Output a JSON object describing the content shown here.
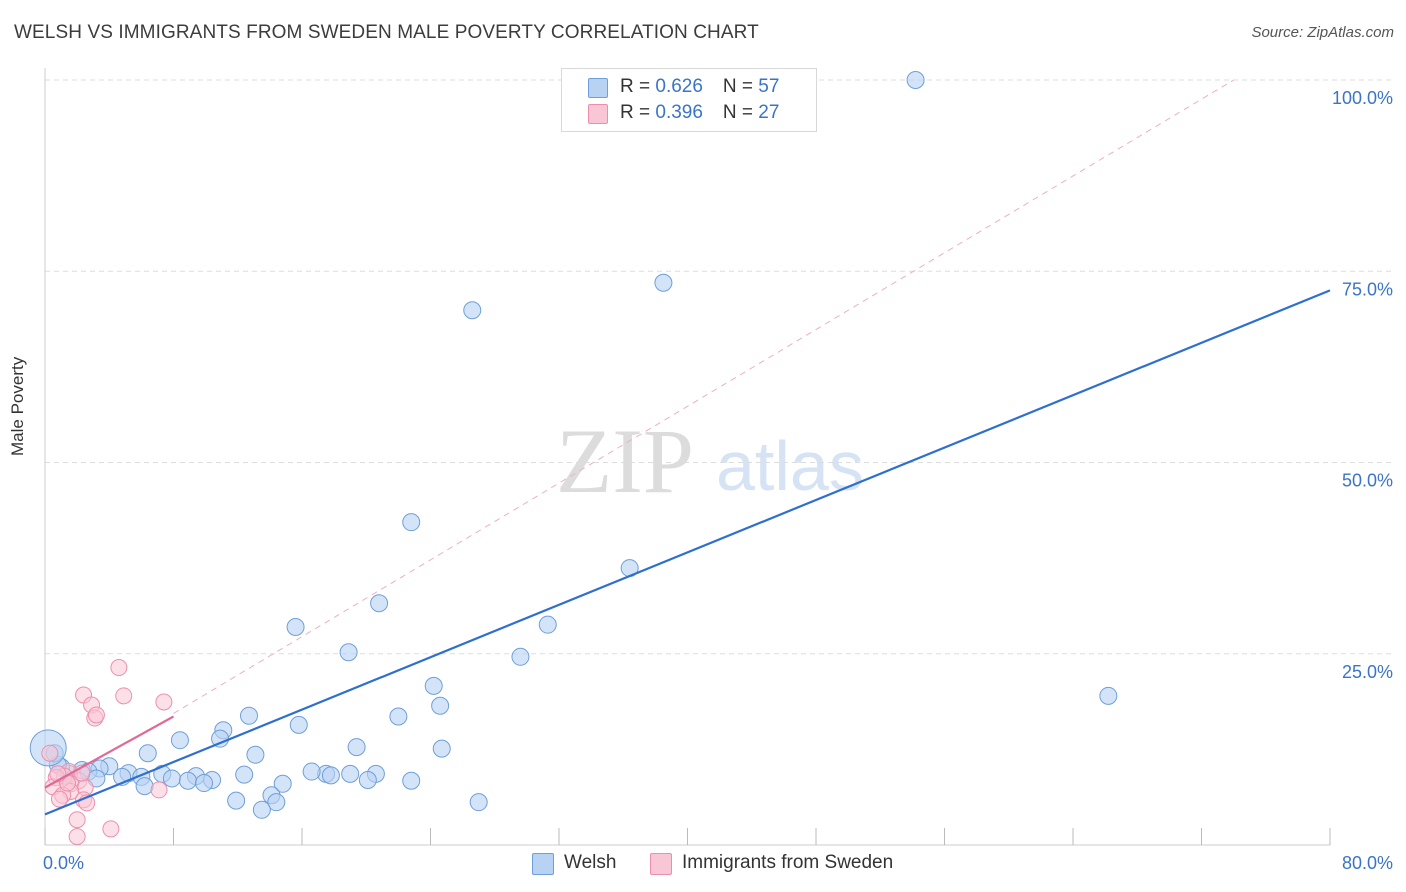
{
  "title": "WELSH VS IMMIGRANTS FROM SWEDEN MALE POVERTY CORRELATION CHART",
  "source": "Source: ZipAtlas.com",
  "watermark": {
    "zip": "ZIP",
    "atlas": "atlas"
  },
  "legend_top": {
    "welsh": {
      "r_label": "R = ",
      "r_value": "0.626",
      "n_label": "N = ",
      "n_value": "57"
    },
    "sweden": {
      "r_label": "R = ",
      "r_value": "0.396",
      "n_label": "N = ",
      "n_value": "27"
    }
  },
  "colors": {
    "welsh_fill": "#b8d2f4",
    "welsh_stroke": "#6f9fd8",
    "welsh_line": "#2f6fcd",
    "sweden_fill": "#f9c6d6",
    "sweden_stroke": "#ec8fae",
    "sweden_line": "#e06a95",
    "grid": "#dddddd",
    "tick": "#3a74c8"
  },
  "chart_data": {
    "type": "scatter",
    "title": "WELSH VS IMMIGRANTS FROM SWEDEN MALE POVERTY CORRELATION CHART",
    "xlabel": "",
    "ylabel": "Male Poverty",
    "xlim": [
      0,
      80
    ],
    "ylim": [
      0,
      100
    ],
    "x_tick_labels": [
      "0.0%",
      "80.0%"
    ],
    "y_tick_labels": [
      "25.0%",
      "50.0%",
      "75.0%",
      "100.0%"
    ],
    "y_ticks": [
      25,
      50,
      75,
      100
    ],
    "grid": true,
    "legend": [
      "Welsh",
      "Immigrants from Sweden"
    ],
    "series": [
      {
        "name": "Welsh",
        "r": 0.626,
        "n": 57,
        "trend": {
          "x": [
            0,
            80
          ],
          "y": [
            4.0,
            72.5
          ]
        },
        "points": [
          [
            54.2,
            100.0
          ],
          [
            38.5,
            73.5
          ],
          [
            26.6,
            69.9
          ],
          [
            22.8,
            42.2
          ],
          [
            36.4,
            36.2
          ],
          [
            20.8,
            31.6
          ],
          [
            31.3,
            28.8
          ],
          [
            15.6,
            28.5
          ],
          [
            29.6,
            24.6
          ],
          [
            18.9,
            25.2
          ],
          [
            66.2,
            19.5
          ],
          [
            24.2,
            20.8
          ],
          [
            24.6,
            18.2
          ],
          [
            12.7,
            16.9
          ],
          [
            22.0,
            16.8
          ],
          [
            15.8,
            15.7
          ],
          [
            11.1,
            15.0
          ],
          [
            8.4,
            13.7
          ],
          [
            10.9,
            13.9
          ],
          [
            24.7,
            12.6
          ],
          [
            19.4,
            12.8
          ],
          [
            13.1,
            11.8
          ],
          [
            6.4,
            12.0
          ],
          [
            4.0,
            10.3
          ],
          [
            3.4,
            10.0
          ],
          [
            2.3,
            9.8
          ],
          [
            5.2,
            9.4
          ],
          [
            7.3,
            9.3
          ],
          [
            6.0,
            8.9
          ],
          [
            12.4,
            9.2
          ],
          [
            17.5,
            9.3
          ],
          [
            20.6,
            9.3
          ],
          [
            16.6,
            9.6
          ],
          [
            19.0,
            9.3
          ],
          [
            17.8,
            9.1
          ],
          [
            9.4,
            9.0
          ],
          [
            10.4,
            8.5
          ],
          [
            7.9,
            8.7
          ],
          [
            8.9,
            8.4
          ],
          [
            14.8,
            8.0
          ],
          [
            9.9,
            8.1
          ],
          [
            6.2,
            7.7
          ],
          [
            14.1,
            6.5
          ],
          [
            11.9,
            5.8
          ],
          [
            14.4,
            5.6
          ],
          [
            27.0,
            5.6
          ],
          [
            13.5,
            4.6
          ],
          [
            22.8,
            8.4
          ],
          [
            20.1,
            8.5
          ],
          [
            1.5,
            9.3
          ],
          [
            2.7,
            9.6
          ],
          [
            1.0,
            10.2
          ],
          [
            0.8,
            10.5
          ],
          [
            4.8,
            8.9
          ],
          [
            0.6,
            12.0
          ],
          [
            3.2,
            8.7
          ],
          [
            0.2,
            12.7
          ]
        ]
      },
      {
        "name": "Immigrants from Sweden",
        "r": 0.396,
        "n": 27,
        "trend": {
          "x": [
            0,
            8
          ],
          "y": [
            7.5,
            16.8
          ]
        },
        "points": [
          [
            4.6,
            23.2
          ],
          [
            2.4,
            19.6
          ],
          [
            4.9,
            19.5
          ],
          [
            7.4,
            18.7
          ],
          [
            2.9,
            18.3
          ],
          [
            3.1,
            16.6
          ],
          [
            3.2,
            17.0
          ],
          [
            0.3,
            12.0
          ],
          [
            1.5,
            9.6
          ],
          [
            1.2,
            9.0
          ],
          [
            0.7,
            8.8
          ],
          [
            2.1,
            8.4
          ],
          [
            1.6,
            8.0
          ],
          [
            2.5,
            7.5
          ],
          [
            0.5,
            7.6
          ],
          [
            7.1,
            7.2
          ],
          [
            1.6,
            7.0
          ],
          [
            1.1,
            6.5
          ],
          [
            0.9,
            6.0
          ],
          [
            2.4,
            5.9
          ],
          [
            2.6,
            5.5
          ],
          [
            2.0,
            3.3
          ],
          [
            4.1,
            2.1
          ],
          [
            2.0,
            1.1
          ],
          [
            1.4,
            8.1
          ],
          [
            0.8,
            9.3
          ],
          [
            2.3,
            9.4
          ]
        ]
      }
    ]
  },
  "legend_bottom": {
    "welsh": "Welsh",
    "sweden": "Immigrants from Sweden"
  }
}
